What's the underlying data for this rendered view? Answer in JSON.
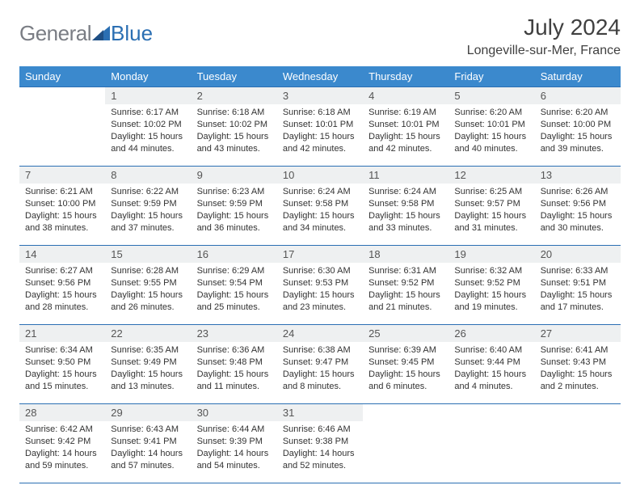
{
  "brand": {
    "general": "General",
    "blue": "Blue"
  },
  "title": "July 2024",
  "location": "Longeville-sur-Mer, France",
  "colors": {
    "header_bg": "#3b89cd",
    "rule": "#2b6fb3",
    "daynum_bg": "#eef0f1",
    "logo_gray": "#7a7d84",
    "logo_blue": "#2b6fb3"
  },
  "weekdays": [
    "Sunday",
    "Monday",
    "Tuesday",
    "Wednesday",
    "Thursday",
    "Friday",
    "Saturday"
  ],
  "weeks": [
    [
      {
        "n": "",
        "sr": "",
        "ss": "",
        "dl": ""
      },
      {
        "n": "1",
        "sr": "6:17 AM",
        "ss": "10:02 PM",
        "dl": "15 hours and 44 minutes."
      },
      {
        "n": "2",
        "sr": "6:18 AM",
        "ss": "10:02 PM",
        "dl": "15 hours and 43 minutes."
      },
      {
        "n": "3",
        "sr": "6:18 AM",
        "ss": "10:01 PM",
        "dl": "15 hours and 42 minutes."
      },
      {
        "n": "4",
        "sr": "6:19 AM",
        "ss": "10:01 PM",
        "dl": "15 hours and 42 minutes."
      },
      {
        "n": "5",
        "sr": "6:20 AM",
        "ss": "10:01 PM",
        "dl": "15 hours and 40 minutes."
      },
      {
        "n": "6",
        "sr": "6:20 AM",
        "ss": "10:00 PM",
        "dl": "15 hours and 39 minutes."
      }
    ],
    [
      {
        "n": "7",
        "sr": "6:21 AM",
        "ss": "10:00 PM",
        "dl": "15 hours and 38 minutes."
      },
      {
        "n": "8",
        "sr": "6:22 AM",
        "ss": "9:59 PM",
        "dl": "15 hours and 37 minutes."
      },
      {
        "n": "9",
        "sr": "6:23 AM",
        "ss": "9:59 PM",
        "dl": "15 hours and 36 minutes."
      },
      {
        "n": "10",
        "sr": "6:24 AM",
        "ss": "9:58 PM",
        "dl": "15 hours and 34 minutes."
      },
      {
        "n": "11",
        "sr": "6:24 AM",
        "ss": "9:58 PM",
        "dl": "15 hours and 33 minutes."
      },
      {
        "n": "12",
        "sr": "6:25 AM",
        "ss": "9:57 PM",
        "dl": "15 hours and 31 minutes."
      },
      {
        "n": "13",
        "sr": "6:26 AM",
        "ss": "9:56 PM",
        "dl": "15 hours and 30 minutes."
      }
    ],
    [
      {
        "n": "14",
        "sr": "6:27 AM",
        "ss": "9:56 PM",
        "dl": "15 hours and 28 minutes."
      },
      {
        "n": "15",
        "sr": "6:28 AM",
        "ss": "9:55 PM",
        "dl": "15 hours and 26 minutes."
      },
      {
        "n": "16",
        "sr": "6:29 AM",
        "ss": "9:54 PM",
        "dl": "15 hours and 25 minutes."
      },
      {
        "n": "17",
        "sr": "6:30 AM",
        "ss": "9:53 PM",
        "dl": "15 hours and 23 minutes."
      },
      {
        "n": "18",
        "sr": "6:31 AM",
        "ss": "9:52 PM",
        "dl": "15 hours and 21 minutes."
      },
      {
        "n": "19",
        "sr": "6:32 AM",
        "ss": "9:52 PM",
        "dl": "15 hours and 19 minutes."
      },
      {
        "n": "20",
        "sr": "6:33 AM",
        "ss": "9:51 PM",
        "dl": "15 hours and 17 minutes."
      }
    ],
    [
      {
        "n": "21",
        "sr": "6:34 AM",
        "ss": "9:50 PM",
        "dl": "15 hours and 15 minutes."
      },
      {
        "n": "22",
        "sr": "6:35 AM",
        "ss": "9:49 PM",
        "dl": "15 hours and 13 minutes."
      },
      {
        "n": "23",
        "sr": "6:36 AM",
        "ss": "9:48 PM",
        "dl": "15 hours and 11 minutes."
      },
      {
        "n": "24",
        "sr": "6:38 AM",
        "ss": "9:47 PM",
        "dl": "15 hours and 8 minutes."
      },
      {
        "n": "25",
        "sr": "6:39 AM",
        "ss": "9:45 PM",
        "dl": "15 hours and 6 minutes."
      },
      {
        "n": "26",
        "sr": "6:40 AM",
        "ss": "9:44 PM",
        "dl": "15 hours and 4 minutes."
      },
      {
        "n": "27",
        "sr": "6:41 AM",
        "ss": "9:43 PM",
        "dl": "15 hours and 2 minutes."
      }
    ],
    [
      {
        "n": "28",
        "sr": "6:42 AM",
        "ss": "9:42 PM",
        "dl": "14 hours and 59 minutes."
      },
      {
        "n": "29",
        "sr": "6:43 AM",
        "ss": "9:41 PM",
        "dl": "14 hours and 57 minutes."
      },
      {
        "n": "30",
        "sr": "6:44 AM",
        "ss": "9:39 PM",
        "dl": "14 hours and 54 minutes."
      },
      {
        "n": "31",
        "sr": "6:46 AM",
        "ss": "9:38 PM",
        "dl": "14 hours and 52 minutes."
      },
      {
        "n": "",
        "sr": "",
        "ss": "",
        "dl": ""
      },
      {
        "n": "",
        "sr": "",
        "ss": "",
        "dl": ""
      },
      {
        "n": "",
        "sr": "",
        "ss": "",
        "dl": ""
      }
    ]
  ],
  "labels": {
    "sunrise": "Sunrise: ",
    "sunset": "Sunset: ",
    "daylight": "Daylight: "
  }
}
